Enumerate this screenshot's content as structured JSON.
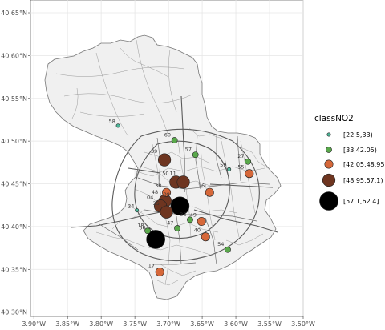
{
  "map": {
    "x_ticks": [
      {
        "lon": -3.9,
        "label": "3.90°W"
      },
      {
        "lon": -3.85,
        "label": "3.85°W"
      },
      {
        "lon": -3.8,
        "label": "3.80°W"
      },
      {
        "lon": -3.75,
        "label": "3.75°W"
      },
      {
        "lon": -3.7,
        "label": "3.70°W"
      },
      {
        "lon": -3.65,
        "label": "3.65°W"
      },
      {
        "lon": -3.6,
        "label": "3.60°W"
      },
      {
        "lon": -3.55,
        "label": "3.55°W"
      },
      {
        "lon": -3.5,
        "label": "3.50°W"
      }
    ],
    "y_ticks": [
      {
        "lat": 40.65,
        "label": "40.65°N"
      },
      {
        "lat": 40.6,
        "label": "40.60°N"
      },
      {
        "lat": 40.55,
        "label": "40.55°N"
      },
      {
        "lat": 40.5,
        "label": "40.50°N"
      },
      {
        "lat": 40.45,
        "label": "40.45°N"
      },
      {
        "lat": 40.4,
        "label": "40.40°N"
      },
      {
        "lat": 40.35,
        "label": "40.35°N"
      },
      {
        "lat": 40.3,
        "label": "40.30°N"
      }
    ],
    "xlim": [
      -3.905,
      -3.5
    ],
    "ylim": [
      40.295,
      40.665
    ],
    "grid": true,
    "region_fill": "#f0f0f0",
    "panel_background": "#ffffff"
  },
  "legend": {
    "title": "classNO2",
    "placement": "right",
    "classes": [
      {
        "label": "[22.5,33)",
        "color": "#4fb79a",
        "size_rank": 1
      },
      {
        "label": "[33,42.05)",
        "color": "#59a84b",
        "size_rank": 2
      },
      {
        "label": "[42.05,48.95)",
        "color": "#d6683a",
        "size_rank": 3
      },
      {
        "label": "[48.95,57.1)",
        "color": "#6e3520",
        "size_rank": 4
      },
      {
        "label": "[57.1,62.4]",
        "color": "#000000",
        "size_rank": 5
      }
    ]
  },
  "stations": [
    {
      "id": "58",
      "lon": -3.775,
      "lat": 40.518,
      "class": 0
    },
    {
      "id": "60",
      "lon": -3.691,
      "lat": 40.501,
      "class": 1
    },
    {
      "id": "57",
      "lon": -3.66,
      "lat": 40.484,
      "class": 1
    },
    {
      "id": "39",
      "lon": -3.706,
      "lat": 40.478,
      "class": 3
    },
    {
      "id": "59",
      "lon": -3.61,
      "lat": 40.467,
      "class": 0
    },
    {
      "id": "27",
      "lon": -3.582,
      "lat": 40.476,
      "class": 1
    },
    {
      "id": "55",
      "lon": -3.58,
      "lat": 40.462,
      "class": 2
    },
    {
      "id": "50",
      "lon": -3.689,
      "lat": 40.452,
      "class": 3
    },
    {
      "id": "11",
      "lon": -3.678,
      "lat": 40.452,
      "class": 3
    },
    {
      "id": "16",
      "lon": -3.639,
      "lat": 40.44,
      "class": 2
    },
    {
      "id": "38",
      "lon": -3.703,
      "lat": 40.44,
      "class": 2
    },
    {
      "id": "48",
      "lon": -3.705,
      "lat": 40.43,
      "class": 3
    },
    {
      "id": "08",
      "lon": -3.683,
      "lat": 40.424,
      "class": 4
    },
    {
      "id": "24",
      "lon": -3.747,
      "lat": 40.419,
      "class": 0
    },
    {
      "id": "04",
      "lon": -3.712,
      "lat": 40.424,
      "class": 3
    },
    {
      "id": "35",
      "lon": -3.703,
      "lat": 40.417,
      "class": 3
    },
    {
      "id": "36",
      "lon": -3.668,
      "lat": 40.408,
      "class": 1
    },
    {
      "id": "49",
      "lon": -3.651,
      "lat": 40.406,
      "class": 2
    },
    {
      "id": "40",
      "lon": -3.645,
      "lat": 40.388,
      "class": 2
    },
    {
      "id": "47",
      "lon": -3.687,
      "lat": 40.398,
      "class": 1
    },
    {
      "id": "18",
      "lon": -3.731,
      "lat": 40.395,
      "class": 1
    },
    {
      "id": "56",
      "lon": -3.719,
      "lat": 40.385,
      "class": 4
    },
    {
      "id": "54",
      "lon": -3.612,
      "lat": 40.373,
      "class": 1
    },
    {
      "id": "17",
      "lon": -3.713,
      "lat": 40.347,
      "class": 2
    }
  ]
}
